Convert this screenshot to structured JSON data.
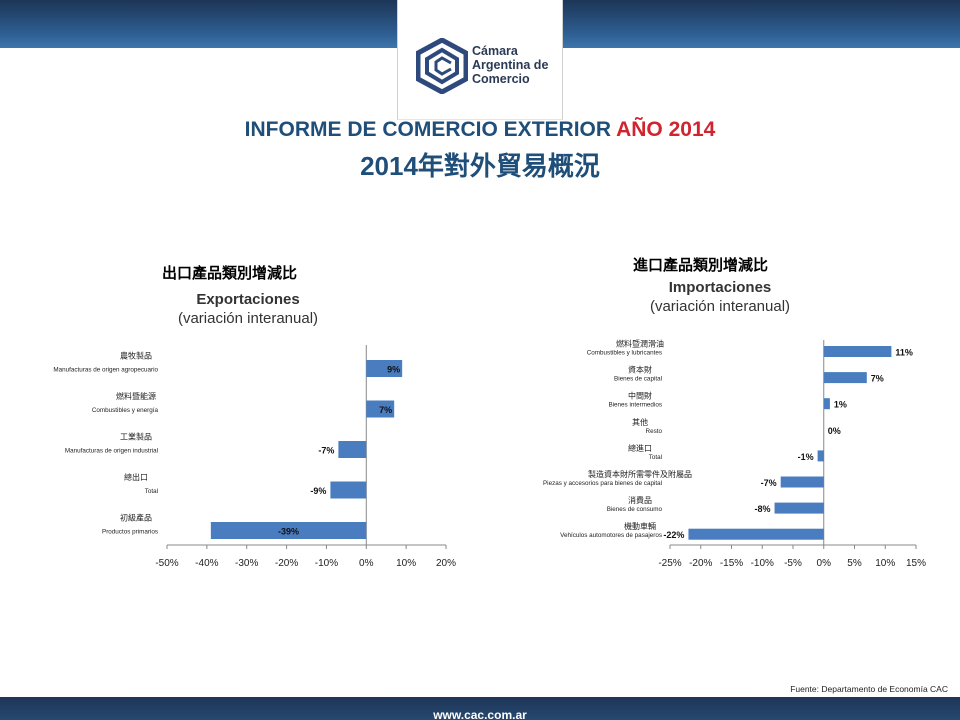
{
  "header": {
    "logo_lines": [
      "Cámara",
      "Argentina de",
      "Comercio"
    ],
    "title_prefix": "INFORME DE COMERCIO EXTERIOR",
    "title_year": "AÑO 2014",
    "title_cn": "2014年對外貿易概況",
    "colors": {
      "primary": "#1f4e79",
      "accent": "#d1242f",
      "bar": "#4a7dbf"
    }
  },
  "chart_data": [
    {
      "type": "bar",
      "orientation": "horizontal",
      "heading_cn": "出口產品類別增減比",
      "title": "Exportaciones",
      "subtitle": "(variación interanual)",
      "categories": [
        "Manufacturas de origen agropecuario",
        "Combustibles y energía",
        "Manufacturas de origen industrial",
        "Total",
        "Productos primarios"
      ],
      "categories_cn": [
        "農牧製品",
        "燃料暨能源",
        "工業製品",
        "總出口",
        "初級產品"
      ],
      "values": [
        9,
        7,
        -7,
        -9,
        -39
      ],
      "data_labels": [
        "9%",
        "7%",
        "-7%",
        "-9%",
        "-39%"
      ],
      "xlim": [
        -50,
        20
      ],
      "xticks": [
        "-50%",
        "-40%",
        "-30%",
        "-20%",
        "-10%",
        "0%",
        "10%",
        "20%"
      ],
      "grid": false
    },
    {
      "type": "bar",
      "orientation": "horizontal",
      "heading_cn": "進口產品類別增減比",
      "title": "Importaciones",
      "subtitle": "(variación interanual)",
      "categories": [
        "Combustibles y lubricantes",
        "Bienes de capital",
        "Bienes intermedios",
        "Resto",
        "Total",
        "Piezas y accesorios para bienes de capital",
        "Bienes de consumo",
        "Vehículos automotores de pasajeros"
      ],
      "categories_cn": [
        "燃料暨潤滑油",
        "資本財",
        "中間財",
        "其他",
        "總進口",
        "製造資本財所需零件及附屬品",
        "消費品",
        "機動車輛"
      ],
      "values": [
        11,
        7,
        1,
        0,
        -1,
        -7,
        -8,
        -22
      ],
      "data_labels": [
        "11%",
        "7%",
        "1%",
        "0%",
        "-1%",
        "-7%",
        "-8%",
        "-22%"
      ],
      "xlim": [
        -25,
        15
      ],
      "xticks": [
        "-25%",
        "-20%",
        "-15%",
        "-10%",
        "-5%",
        "0%",
        "5%",
        "10%",
        "15%"
      ],
      "grid": false
    }
  ],
  "footer": {
    "source": "Fuente: Departamento de Economía CAC",
    "website": "www.cac.com.ar"
  }
}
